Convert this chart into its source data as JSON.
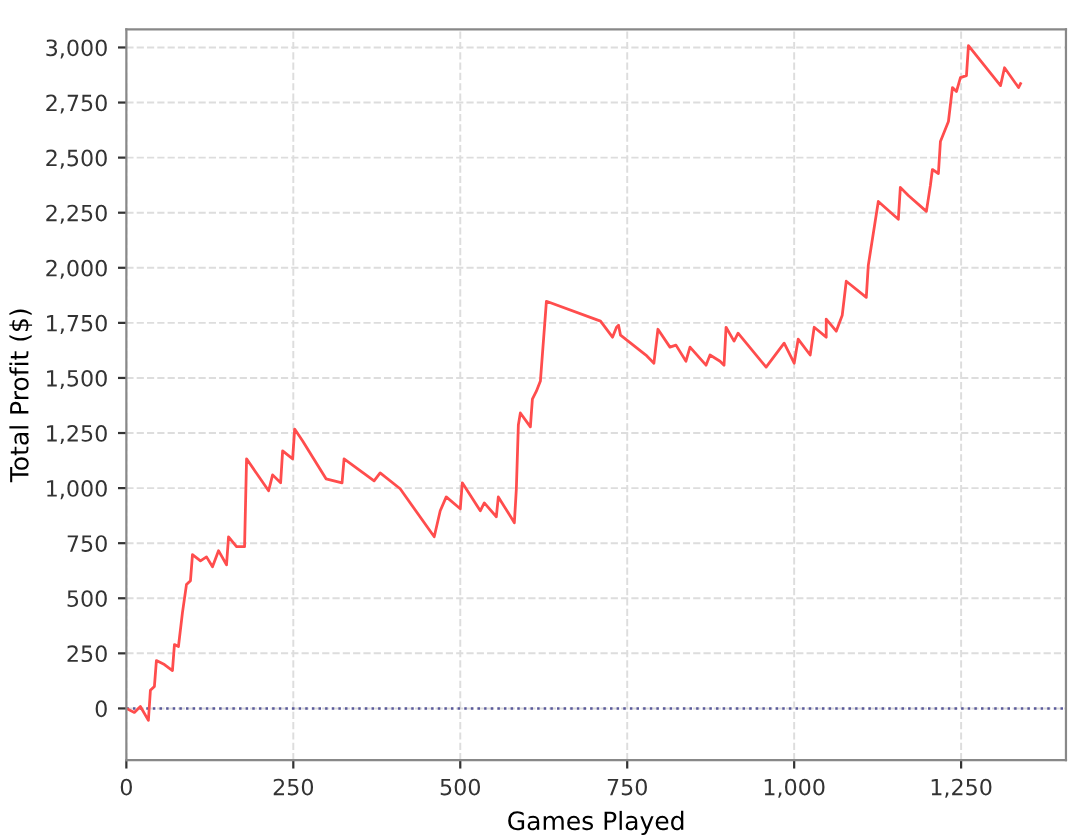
{
  "chart_data": {
    "type": "line",
    "xlabel": "Games Played",
    "ylabel": "Total Profit ($)",
    "series": [
      {
        "color": "#ff4d4d",
        "x": [
          0,
          12,
          21,
          33,
          36,
          42,
          45,
          57,
          69,
          72,
          78,
          84,
          90,
          96,
          99,
          111,
          120,
          129,
          138,
          150,
          153,
          165,
          177,
          180,
          213,
          219,
          231,
          234,
          249,
          252,
          264,
          299,
          323,
          326,
          371,
          380,
          410,
          461,
          470,
          479,
          500,
          503,
          530,
          536,
          554,
          557,
          581,
          584,
          587,
          590,
          605,
          608,
          614,
          620,
          629,
          710,
          728,
          734,
          737,
          740,
          778,
          790,
          796,
          814,
          823,
          838,
          844,
          868,
          874,
          889,
          895,
          898,
          910,
          916,
          958,
          985,
          1000,
          1006,
          1024,
          1030,
          1048,
          1048,
          1063,
          1072,
          1078,
          1108,
          1111,
          1126,
          1156,
          1159,
          1171,
          1198,
          1204,
          1207,
          1216,
          1219,
          1231,
          1237,
          1243,
          1249,
          1258,
          1261,
          1309,
          1315,
          1336,
          1339
        ],
        "values": [
          0,
          -18,
          9,
          -54,
          82,
          100,
          217,
          199,
          172,
          290,
          281,
          435,
          562,
          580,
          698,
          670,
          688,
          643,
          716,
          652,
          779,
          734,
          734,
          1133,
          988,
          1060,
          1024,
          1169,
          1133,
          1268,
          1214,
          1042,
          1024,
          1133,
          1033,
          1069,
          997,
          779,
          897,
          960,
          906,
          1024,
          897,
          933,
          870,
          960,
          843,
          997,
          1287,
          1341,
          1278,
          1404,
          1440,
          1486,
          1848,
          1758,
          1685,
          1730,
          1739,
          1694,
          1604,
          1567,
          1721,
          1640,
          1649,
          1576,
          1640,
          1558,
          1604,
          1576,
          1558,
          1730,
          1667,
          1703,
          1549,
          1658,
          1567,
          1676,
          1604,
          1730,
          1685,
          1767,
          1712,
          1785,
          1939,
          1866,
          2011,
          2301,
          2220,
          2365,
          2328,
          2256,
          2374,
          2446,
          2428,
          2573,
          2664,
          2818,
          2800,
          2863,
          2872,
          3008,
          2827,
          2908,
          2818,
          2836
        ]
      }
    ],
    "xlim": [
      0,
      1407
    ],
    "ylim": [
      -235,
      3082
    ],
    "xticks": [
      0,
      250,
      500,
      750,
      {
        "value": 1000,
        "label": "1,000"
      },
      {
        "value": 1250,
        "label": "1,250"
      }
    ],
    "yticks": [
      0,
      250,
      500,
      750,
      {
        "value": 1000,
        "label": "1,000"
      },
      {
        "value": 1250,
        "label": "1,250"
      },
      {
        "value": 1500,
        "label": "1,500"
      },
      {
        "value": 1750,
        "label": "1,750"
      },
      {
        "value": 2000,
        "label": "2,000"
      },
      {
        "value": 2250,
        "label": "2,250"
      },
      {
        "value": 2500,
        "label": "2,500"
      },
      {
        "value": 2750,
        "label": "2,750"
      },
      {
        "value": 3000,
        "label": "3,000"
      }
    ],
    "grid": true,
    "legend": false,
    "ref_lines": [
      {
        "axis": "y",
        "value": 0,
        "color": "#5a5a9a",
        "line_style": "dotted"
      }
    ]
  }
}
